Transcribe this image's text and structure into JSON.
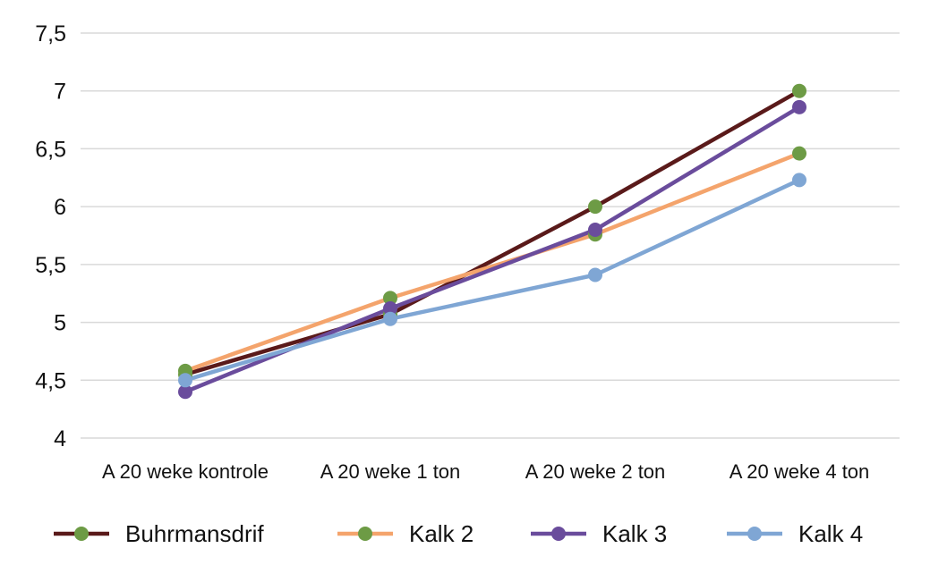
{
  "chart_data": {
    "type": "line",
    "title": "",
    "xlabel": "",
    "ylabel": "",
    "categories": [
      "A 20 weke kontrole",
      "A 20 weke 1 ton",
      "A 20 weke 2 ton",
      "A 20 weke 4 ton"
    ],
    "y_ticks": [
      "4",
      "4,5",
      "5",
      "5,5",
      "6",
      "6,5",
      "7",
      "7,5"
    ],
    "ylim": [
      4,
      7.5
    ],
    "grid": true,
    "legend_position": "bottom",
    "series": [
      {
        "name": "Buhrmansdrif",
        "values": [
          4.55,
          5.07,
          6.0,
          7.0
        ],
        "line_color": "#5a1a1a",
        "marker_color": "#6d9b45"
      },
      {
        "name": "Kalk 2",
        "values": [
          4.58,
          5.21,
          5.76,
          6.46
        ],
        "line_color": "#f4a46c",
        "marker_color": "#6d9b45"
      },
      {
        "name": "Kalk 3",
        "values": [
          4.4,
          5.12,
          5.8,
          6.86
        ],
        "line_color": "#6a4c9c",
        "marker_color": "#6a4c9c"
      },
      {
        "name": "Kalk 4",
        "values": [
          4.5,
          5.03,
          5.41,
          6.23
        ],
        "line_color": "#7fa6d4",
        "marker_color": "#7fa6d4"
      }
    ]
  }
}
